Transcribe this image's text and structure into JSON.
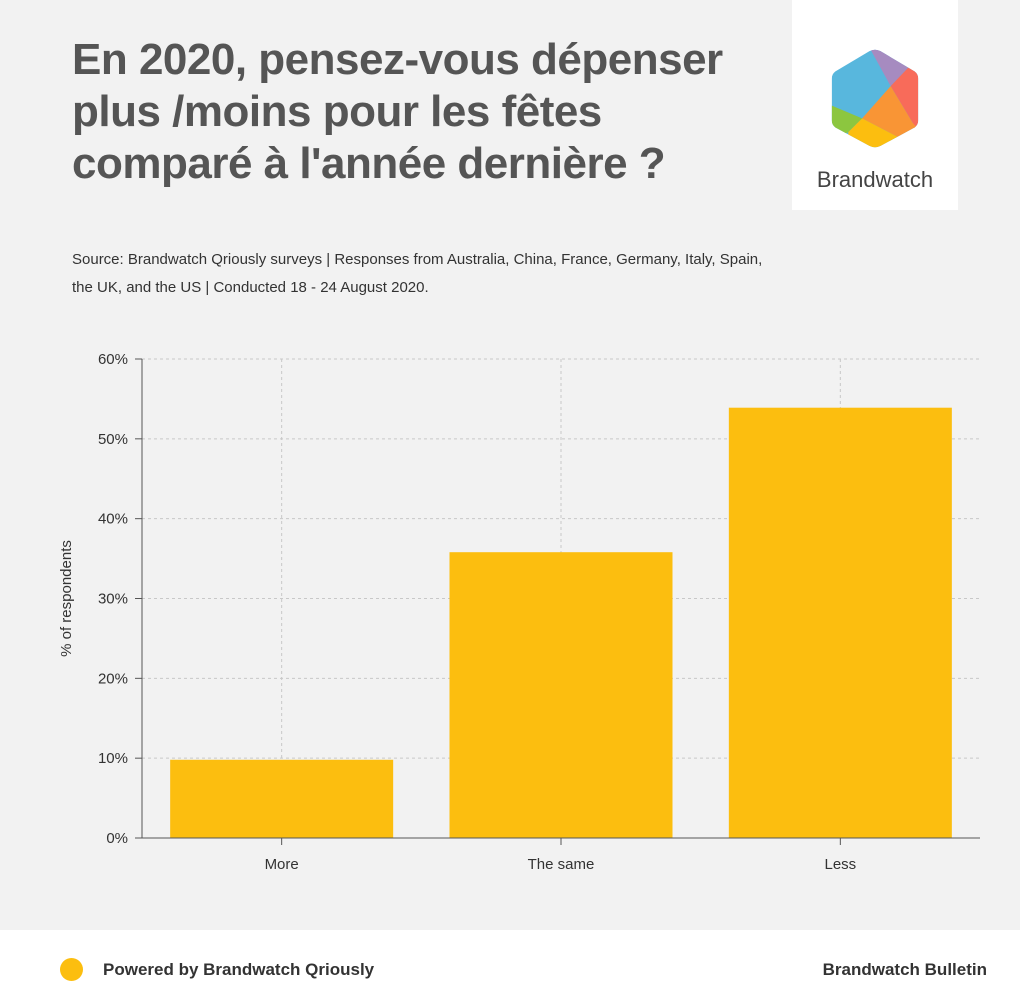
{
  "title": "En 2020, pensez-vous dépenser plus /moins pour les fêtes comparé à l'année dernière ?",
  "logo": {
    "text": "Brandwatch"
  },
  "source": "Source: Brandwatch Qriously surveys | Responses from Australia, China, France, Germany, Italy, Spain, the UK, and the US | Conducted 18 - 24 August 2020.",
  "footer": {
    "powered_by": "Powered by Brandwatch Qriously",
    "brand": "Brandwatch Bulletin"
  },
  "colors": {
    "bar": "#fcbe0f",
    "title": "#555555",
    "background": "#f2f2f2"
  },
  "chart_data": {
    "type": "bar",
    "title": "En 2020, pensez-vous dépenser plus /moins pour les fêtes comparé à l'année dernière ?",
    "categories": [
      "More",
      "The same",
      "Less"
    ],
    "values": [
      9.8,
      35.8,
      53.9
    ],
    "xlabel": "",
    "ylabel": "% of respondents",
    "ylim": [
      0,
      60
    ],
    "yticks": [
      "0%",
      "10%",
      "20%",
      "30%",
      "40%",
      "50%",
      "60%"
    ],
    "grid": true,
    "legend": "none"
  }
}
